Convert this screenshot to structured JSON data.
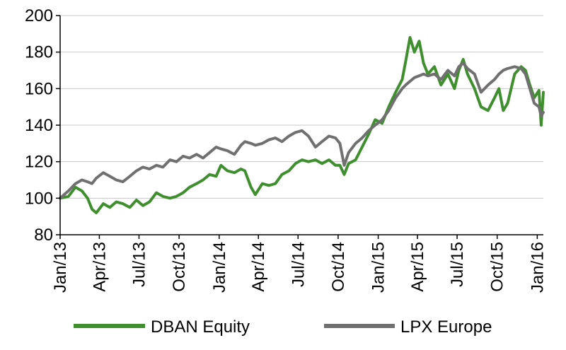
{
  "chart_data": {
    "type": "line",
    "title": "",
    "xlabel": "",
    "ylabel": "",
    "ylim": [
      80,
      200
    ],
    "yticks": [
      80,
      100,
      120,
      140,
      160,
      180,
      200
    ],
    "xlim": [
      "2013-01-01",
      "2016-01-15"
    ],
    "xticks": [
      {
        "date": "2013-01-01",
        "label": "Jan/13"
      },
      {
        "date": "2013-04-01",
        "label": "Apr/13"
      },
      {
        "date": "2013-07-01",
        "label": "Jul/13"
      },
      {
        "date": "2013-10-01",
        "label": "Oct/13"
      },
      {
        "date": "2014-01-01",
        "label": "Jan/14"
      },
      {
        "date": "2014-04-01",
        "label": "Apr/14"
      },
      {
        "date": "2014-07-01",
        "label": "Jul/14"
      },
      {
        "date": "2014-10-01",
        "label": "Oct/14"
      },
      {
        "date": "2015-01-01",
        "label": "Jan/15"
      },
      {
        "date": "2015-04-01",
        "label": "Apr/15"
      },
      {
        "date": "2015-07-01",
        "label": "Jul/15"
      },
      {
        "date": "2015-10-01",
        "label": "Oct/15"
      },
      {
        "date": "2016-01-01",
        "label": "Jan/16"
      }
    ],
    "grid": "horizontal",
    "legend_position": "bottom",
    "series": [
      {
        "name": "DBAN Equity",
        "color": "#3f8f2f",
        "points": [
          [
            "2013-01-01",
            100
          ],
          [
            "2013-01-20",
            101
          ],
          [
            "2013-02-05",
            106
          ],
          [
            "2013-02-20",
            104
          ],
          [
            "2013-03-05",
            100
          ],
          [
            "2013-03-15",
            94
          ],
          [
            "2013-03-25",
            92
          ],
          [
            "2013-04-10",
            97
          ],
          [
            "2013-04-25",
            95
          ],
          [
            "2013-05-10",
            98
          ],
          [
            "2013-05-25",
            97
          ],
          [
            "2013-06-10",
            95
          ],
          [
            "2013-06-25",
            99
          ],
          [
            "2013-07-10",
            96
          ],
          [
            "2013-07-25",
            98
          ],
          [
            "2013-08-10",
            103
          ],
          [
            "2013-08-25",
            101
          ],
          [
            "2013-09-10",
            100
          ],
          [
            "2013-09-25",
            101
          ],
          [
            "2013-10-10",
            103
          ],
          [
            "2013-10-25",
            106
          ],
          [
            "2013-11-10",
            108
          ],
          [
            "2013-11-25",
            110
          ],
          [
            "2013-12-10",
            113
          ],
          [
            "2013-12-25",
            112
          ],
          [
            "2014-01-05",
            118
          ],
          [
            "2014-01-20",
            115
          ],
          [
            "2014-02-05",
            114
          ],
          [
            "2014-02-20",
            116
          ],
          [
            "2014-03-01",
            115
          ],
          [
            "2014-03-15",
            106
          ],
          [
            "2014-03-25",
            102
          ],
          [
            "2014-04-10",
            108
          ],
          [
            "2014-04-25",
            107
          ],
          [
            "2014-05-10",
            108
          ],
          [
            "2014-05-25",
            113
          ],
          [
            "2014-06-10",
            115
          ],
          [
            "2014-06-25",
            119
          ],
          [
            "2014-07-10",
            121
          ],
          [
            "2014-07-25",
            120
          ],
          [
            "2014-08-10",
            121
          ],
          [
            "2014-08-25",
            119
          ],
          [
            "2014-09-10",
            121
          ],
          [
            "2014-09-25",
            118
          ],
          [
            "2014-10-05",
            118
          ],
          [
            "2014-10-15",
            113
          ],
          [
            "2014-10-25",
            119
          ],
          [
            "2014-11-10",
            121
          ],
          [
            "2014-11-25",
            128
          ],
          [
            "2014-12-10",
            135
          ],
          [
            "2014-12-25",
            143
          ],
          [
            "2015-01-10",
            141
          ],
          [
            "2015-01-25",
            150
          ],
          [
            "2015-02-10",
            158
          ],
          [
            "2015-02-25",
            165
          ],
          [
            "2015-03-05",
            175
          ],
          [
            "2015-03-15",
            188
          ],
          [
            "2015-03-25",
            180
          ],
          [
            "2015-04-05",
            186
          ],
          [
            "2015-04-15",
            174
          ],
          [
            "2015-04-25",
            168
          ],
          [
            "2015-05-10",
            172
          ],
          [
            "2015-05-25",
            162
          ],
          [
            "2015-06-10",
            168
          ],
          [
            "2015-06-25",
            160
          ],
          [
            "2015-07-05",
            170
          ],
          [
            "2015-07-15",
            176
          ],
          [
            "2015-07-25",
            168
          ],
          [
            "2015-08-10",
            160
          ],
          [
            "2015-08-25",
            150
          ],
          [
            "2015-09-10",
            148
          ],
          [
            "2015-09-25",
            155
          ],
          [
            "2015-10-05",
            160
          ],
          [
            "2015-10-15",
            148
          ],
          [
            "2015-10-25",
            152
          ],
          [
            "2015-11-10",
            168
          ],
          [
            "2015-11-25",
            172
          ],
          [
            "2015-12-05",
            170
          ],
          [
            "2015-12-15",
            162
          ],
          [
            "2015-12-25",
            155
          ],
          [
            "2016-01-05",
            159
          ],
          [
            "2016-01-10",
            140
          ],
          [
            "2016-01-15",
            158
          ]
        ]
      },
      {
        "name": "LPX Europe",
        "color": "#707070",
        "points": [
          [
            "2013-01-01",
            100
          ],
          [
            "2013-01-20",
            104
          ],
          [
            "2013-02-05",
            108
          ],
          [
            "2013-02-20",
            110
          ],
          [
            "2013-03-05",
            109
          ],
          [
            "2013-03-15",
            108
          ],
          [
            "2013-03-25",
            111
          ],
          [
            "2013-04-10",
            114
          ],
          [
            "2013-04-25",
            112
          ],
          [
            "2013-05-10",
            110
          ],
          [
            "2013-05-25",
            109
          ],
          [
            "2013-06-10",
            112
          ],
          [
            "2013-06-25",
            115
          ],
          [
            "2013-07-10",
            117
          ],
          [
            "2013-07-25",
            116
          ],
          [
            "2013-08-10",
            118
          ],
          [
            "2013-08-25",
            117
          ],
          [
            "2013-09-10",
            121
          ],
          [
            "2013-09-25",
            120
          ],
          [
            "2013-10-10",
            123
          ],
          [
            "2013-10-25",
            122
          ],
          [
            "2013-11-10",
            124
          ],
          [
            "2013-11-25",
            122
          ],
          [
            "2013-12-10",
            125
          ],
          [
            "2013-12-25",
            128
          ],
          [
            "2014-01-05",
            127
          ],
          [
            "2014-01-20",
            126
          ],
          [
            "2014-02-05",
            124
          ],
          [
            "2014-02-20",
            129
          ],
          [
            "2014-03-01",
            131
          ],
          [
            "2014-03-15",
            130
          ],
          [
            "2014-03-25",
            129
          ],
          [
            "2014-04-10",
            130
          ],
          [
            "2014-04-25",
            132
          ],
          [
            "2014-05-10",
            133
          ],
          [
            "2014-05-25",
            131
          ],
          [
            "2014-06-10",
            134
          ],
          [
            "2014-06-25",
            136
          ],
          [
            "2014-07-10",
            137
          ],
          [
            "2014-07-25",
            134
          ],
          [
            "2014-08-10",
            128
          ],
          [
            "2014-08-25",
            131
          ],
          [
            "2014-09-10",
            134
          ],
          [
            "2014-09-25",
            133
          ],
          [
            "2014-10-05",
            130
          ],
          [
            "2014-10-15",
            118
          ],
          [
            "2014-10-25",
            125
          ],
          [
            "2014-11-10",
            130
          ],
          [
            "2014-11-25",
            133
          ],
          [
            "2014-12-10",
            137
          ],
          [
            "2014-12-25",
            140
          ],
          [
            "2015-01-10",
            143
          ],
          [
            "2015-01-25",
            148
          ],
          [
            "2015-02-10",
            155
          ],
          [
            "2015-02-25",
            160
          ],
          [
            "2015-03-05",
            162
          ],
          [
            "2015-03-15",
            164
          ],
          [
            "2015-03-25",
            166
          ],
          [
            "2015-04-05",
            167
          ],
          [
            "2015-04-15",
            168
          ],
          [
            "2015-04-25",
            167
          ],
          [
            "2015-05-10",
            168
          ],
          [
            "2015-05-25",
            165
          ],
          [
            "2015-06-10",
            170
          ],
          [
            "2015-06-25",
            167
          ],
          [
            "2015-07-05",
            172
          ],
          [
            "2015-07-15",
            174
          ],
          [
            "2015-07-25",
            171
          ],
          [
            "2015-08-10",
            168
          ],
          [
            "2015-08-25",
            158
          ],
          [
            "2015-09-10",
            162
          ],
          [
            "2015-09-25",
            165
          ],
          [
            "2015-10-05",
            168
          ],
          [
            "2015-10-15",
            170
          ],
          [
            "2015-10-25",
            171
          ],
          [
            "2015-11-10",
            172
          ],
          [
            "2015-11-25",
            171
          ],
          [
            "2015-12-05",
            168
          ],
          [
            "2015-12-15",
            160
          ],
          [
            "2015-12-25",
            152
          ],
          [
            "2016-01-05",
            150
          ],
          [
            "2016-01-10",
            145
          ],
          [
            "2016-01-15",
            147
          ]
        ]
      }
    ]
  }
}
